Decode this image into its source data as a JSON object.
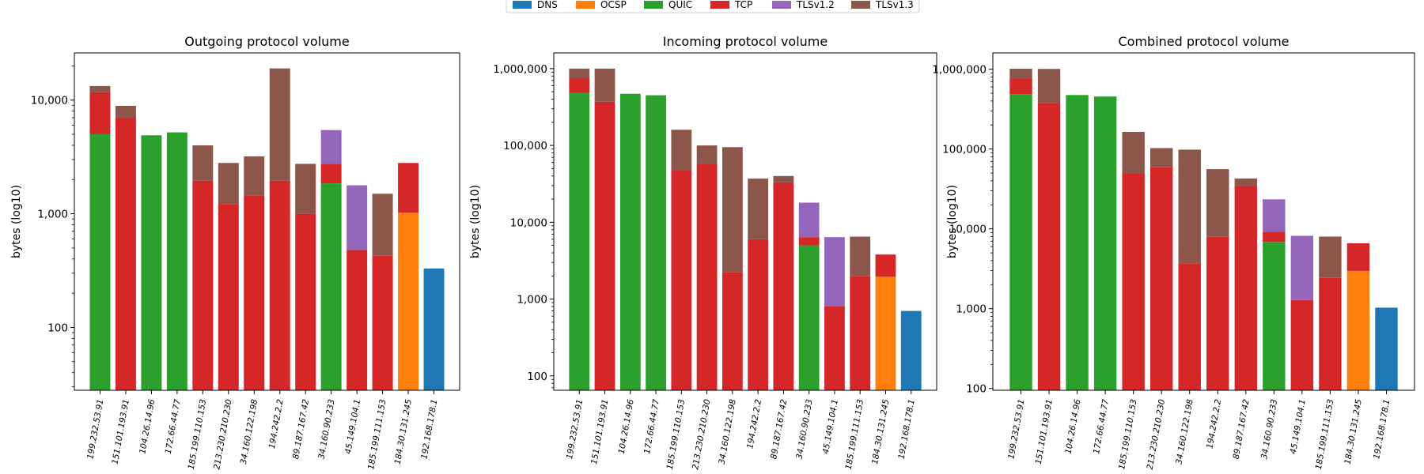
{
  "chart_data": {
    "type": "bar",
    "stacked": true,
    "yscale": "log",
    "legend": {
      "placement": "top-center",
      "entries": [
        "DNS",
        "OCSP",
        "QUIC",
        "TCP",
        "TLSv1.2",
        "TLSv1.3"
      ]
    },
    "colors": {
      "DNS": "#1f77b4",
      "OCSP": "#ff7f0e",
      "QUIC": "#2ca02c",
      "TCP": "#d62728",
      "TLSv1.2": "#9467bd",
      "TLSv1.3": "#8c564b"
    },
    "categories": [
      "199.232.53.91",
      "151.101.193.91",
      "104.26.14.96",
      "172.66.44.77",
      "185.199.110.153",
      "213.230.210.230",
      "34.160.122.198",
      "194.242.2.2",
      "89.187.167.42",
      "34.160.90.233",
      "45.149.104.1",
      "185.199.111.153",
      "184.30.131.245",
      "192.168.178.1"
    ],
    "panels": [
      {
        "title": "Outgoing protocol volume",
        "ylabel": "bytes (log10)",
        "ylim": [
          28,
          26000
        ],
        "yticks": [
          100,
          1000,
          10000
        ],
        "ytick_labels": [
          "100",
          "1,000",
          "10,000"
        ],
        "series": [
          {
            "name": "DNS",
            "values": [
              0,
              0,
              0,
              0,
              0,
              0,
              0,
              0,
              0,
              0,
              0,
              0,
              0,
              330
            ]
          },
          {
            "name": "OCSP",
            "values": [
              0,
              0,
              0,
              0,
              0,
              0,
              0,
              0,
              0,
              0,
              0,
              0,
              1020,
              0
            ]
          },
          {
            "name": "QUIC",
            "values": [
              5000,
              0,
              4900,
              5200,
              0,
              0,
              0,
              0,
              0,
              1850,
              0,
              0,
              0,
              0
            ]
          },
          {
            "name": "TCP",
            "values": [
              6700,
              7000,
              0,
              0,
              1950,
              1220,
              1450,
              1950,
              1000,
              900,
              480,
              430,
              1780,
              0
            ]
          },
          {
            "name": "TLSv1.2",
            "values": [
              0,
              0,
              0,
              0,
              0,
              0,
              0,
              0,
              0,
              2700,
              1300,
              0,
              0,
              0
            ]
          },
          {
            "name": "TLSv1.3",
            "values": [
              1600,
              1900,
              0,
              0,
              2050,
              1580,
              1750,
              17050,
              1750,
              0,
              0,
              1070,
              0,
              0
            ]
          }
        ]
      },
      {
        "title": "Incoming protocol volume",
        "ylabel": "bytes (log10)",
        "ylim": [
          65,
          1600000
        ],
        "yticks": [
          100,
          1000,
          10000,
          100000,
          1000000
        ],
        "ytick_labels": [
          "100",
          "1,000",
          "10,000",
          "100,000",
          "1,000,000"
        ],
        "series": [
          {
            "name": "DNS",
            "values": [
              0,
              0,
              0,
              0,
              0,
              0,
              0,
              0,
              0,
              0,
              0,
              0,
              0,
              700
            ]
          },
          {
            "name": "OCSP",
            "values": [
              0,
              0,
              0,
              0,
              0,
              0,
              0,
              0,
              0,
              0,
              0,
              0,
              1950,
              0
            ]
          },
          {
            "name": "QUIC",
            "values": [
              480000,
              0,
              470000,
              450000,
              0,
              0,
              0,
              0,
              0,
              5000,
              0,
              0,
              0,
              0
            ]
          },
          {
            "name": "TCP",
            "values": [
              270000,
              370000,
              0,
              0,
              48000,
              58000,
              2250,
              6000,
              33000,
              1400,
              800,
              2000,
              1850,
              0
            ]
          },
          {
            "name": "TLSv1.2",
            "values": [
              0,
              0,
              0,
              0,
              0,
              0,
              0,
              0,
              0,
              11600,
              5600,
              0,
              0,
              0
            ]
          },
          {
            "name": "TLSv1.3",
            "values": [
              250000,
              630000,
              0,
              0,
              112000,
              42000,
              92750,
              31000,
              7000,
              0,
              0,
              4500,
              0,
              0
            ]
          }
        ]
      },
      {
        "title": "Combined protocol volume",
        "ylabel": "bytes (log10)",
        "ylim": [
          95,
          1600000
        ],
        "yticks": [
          100,
          1000,
          10000,
          100000,
          1000000
        ],
        "ytick_labels": [
          "100",
          "1,000",
          "10,000",
          "100,000",
          "1,000,000"
        ],
        "series": [
          {
            "name": "DNS",
            "values": [
              0,
              0,
              0,
              0,
              0,
              0,
              0,
              0,
              0,
              0,
              0,
              0,
              0,
              1030
            ]
          },
          {
            "name": "OCSP",
            "values": [
              0,
              0,
              0,
              0,
              0,
              0,
              0,
              0,
              0,
              0,
              0,
              0,
              2970,
              0
            ]
          },
          {
            "name": "QUIC",
            "values": [
              485000,
              0,
              475000,
              455000,
              0,
              0,
              0,
              0,
              0,
              6850,
              0,
              0,
              0,
              0
            ]
          },
          {
            "name": "TCP",
            "values": [
              277000,
              377000,
              0,
              0,
              50000,
              59200,
              3700,
              7950,
              34000,
              2300,
              1280,
              2430,
              3630,
              0
            ]
          },
          {
            "name": "TLSv1.2",
            "values": [
              0,
              0,
              0,
              0,
              0,
              0,
              0,
              0,
              0,
              14300,
              6900,
              0,
              0,
              0
            ]
          },
          {
            "name": "TLSv1.3",
            "values": [
              251600,
              632000,
              0,
              0,
              114000,
              43600,
              94500,
              48050,
              8750,
              0,
              0,
              5570,
              0,
              0
            ]
          }
        ]
      }
    ]
  }
}
